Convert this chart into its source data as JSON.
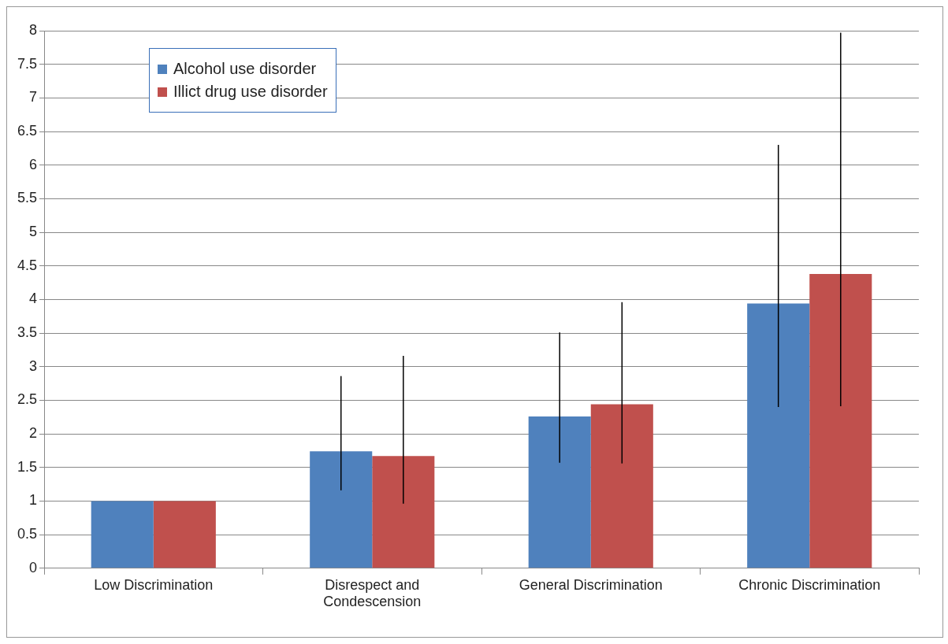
{
  "chart_data": {
    "type": "bar",
    "categories": [
      "Low Discrimination",
      "Disrespect and Condescension",
      "General Discrimination",
      "Chronic Discrimination"
    ],
    "series": [
      {
        "name": "Alcohol use disorder",
        "color": "#4f81bd",
        "values": [
          1,
          1.74,
          2.26,
          3.94
        ],
        "errors": [
          null,
          [
            1.16,
            2.86
          ],
          [
            1.57,
            3.51
          ],
          [
            2.4,
            6.3
          ]
        ]
      },
      {
        "name": "Illict drug use disorder",
        "color": "#c0504d",
        "values": [
          1,
          1.67,
          2.44,
          4.38
        ],
        "errors": [
          null,
          [
            0.96,
            3.16
          ],
          [
            1.56,
            3.96
          ],
          [
            2.41,
            7.97
          ]
        ]
      }
    ],
    "ylim": [
      0,
      8
    ],
    "yticks": [
      0,
      0.5,
      1,
      1.5,
      2,
      2.5,
      3,
      3.5,
      4,
      4.5,
      5,
      5.5,
      6,
      6.5,
      7,
      7.5,
      8
    ],
    "grid": "y",
    "legend": "top left"
  }
}
